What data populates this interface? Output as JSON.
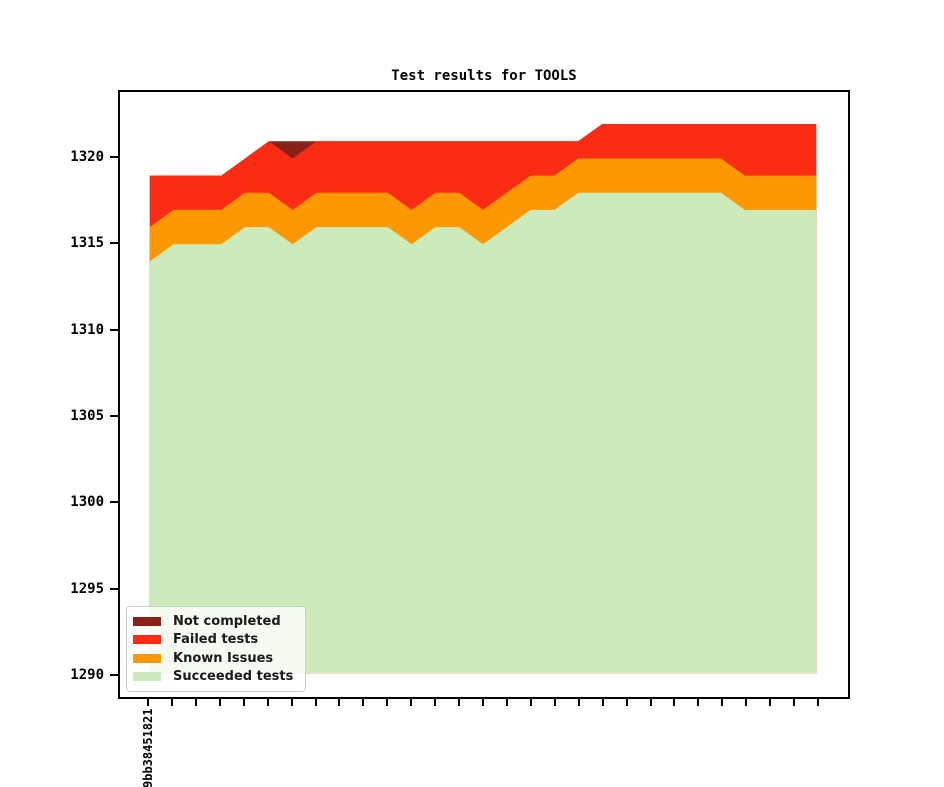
{
  "figure_title": "Test results for TOOLS",
  "legend": {
    "position": "lower left",
    "entries": [
      {
        "label": "Not completed",
        "color": "#8B2018"
      },
      {
        "label": "Failed tests",
        "color": "#FB2C14"
      },
      {
        "label": "Known Issues",
        "color": "#FE9800"
      },
      {
        "label": "Succeeded tests",
        "color": "#CDEBBA"
      }
    ]
  },
  "x_axis": {
    "tick_count": 29,
    "first_tick_label": "9bb38451821",
    "label_rotation_deg": 90
  },
  "chart_data": {
    "type": "area",
    "stacked": true,
    "title": "Test results for TOOLS",
    "xlabel": "",
    "ylabel": "",
    "grid": false,
    "legend_position": "lower left",
    "num_points": 29,
    "baseline": 1290,
    "ylim": [
      1288.6,
      1323.9
    ],
    "y_ticks": [
      1290,
      1295,
      1300,
      1305,
      1310,
      1315,
      1320
    ],
    "x_tick_count": 29,
    "x_first_tick_label": "9bb38451821",
    "series": [
      {
        "name": "Succeeded tests",
        "color": "#CDEBBA",
        "values": [
          1314,
          1315,
          1315,
          1315,
          1316,
          1316,
          1315,
          1316,
          1316,
          1316,
          1316,
          1315,
          1316,
          1316,
          1315,
          1316,
          1317,
          1317,
          1318,
          1318,
          1318,
          1318,
          1318,
          1318,
          1318,
          1317,
          1317,
          1317,
          1317
        ]
      },
      {
        "name": "Known Issues",
        "color": "#FE9800",
        "values": [
          2,
          2,
          2,
          2,
          2,
          2,
          2,
          2,
          2,
          2,
          2,
          2,
          2,
          2,
          2,
          2,
          2,
          2,
          2,
          2,
          2,
          2,
          2,
          2,
          2,
          2,
          2,
          2,
          2
        ]
      },
      {
        "name": "Failed tests",
        "color": "#FB2C14",
        "values": [
          3,
          2,
          2,
          2,
          2,
          3,
          3,
          3,
          3,
          3,
          3,
          4,
          3,
          3,
          4,
          3,
          2,
          2,
          1,
          2,
          2,
          2,
          2,
          2,
          2,
          3,
          3,
          3,
          3
        ]
      },
      {
        "name": "Not completed",
        "color": "#8B2018",
        "values": [
          0,
          0,
          0,
          0,
          0,
          0,
          1,
          0,
          0,
          0,
          0,
          0,
          0,
          0,
          0,
          0,
          0,
          0,
          0,
          0,
          0,
          0,
          0,
          0,
          0,
          0,
          0,
          0,
          0
        ]
      }
    ]
  }
}
